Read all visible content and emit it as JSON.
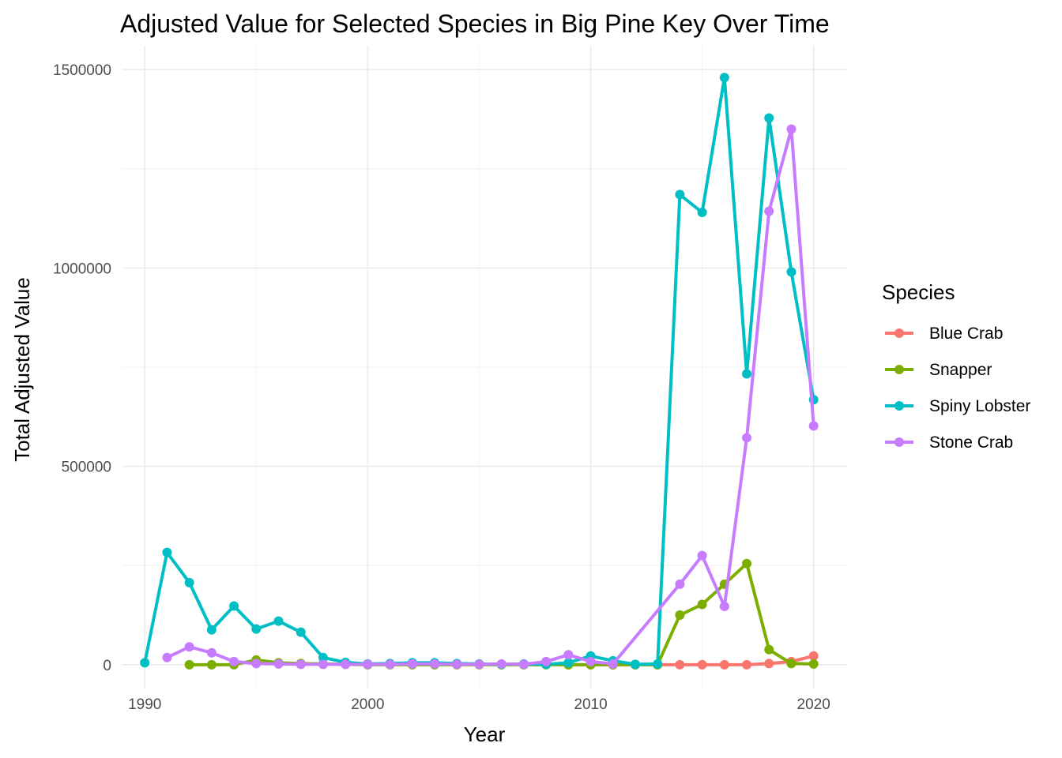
{
  "chart_data": {
    "type": "line",
    "title": "Adjusted Value for Selected Species in Big Pine Key Over Time",
    "xlabel": "Year",
    "ylabel": "Total Adjusted Value",
    "xlim": [
      1989,
      2021.5
    ],
    "ylim": [
      -60000,
      1560000
    ],
    "xticks": [
      1990,
      2000,
      2010,
      2020
    ],
    "yticks": [
      0,
      500000,
      1000000,
      1500000
    ],
    "grid": true,
    "legend": {
      "title": "Species",
      "position": "right"
    },
    "series": [
      {
        "name": "Blue Crab",
        "color": "#F8766D",
        "points": [
          [
            2009,
            0
          ],
          [
            2010,
            0
          ],
          [
            2011,
            0
          ],
          [
            2012,
            0
          ],
          [
            2013,
            0
          ],
          [
            2014,
            0
          ],
          [
            2015,
            0
          ],
          [
            2016,
            0
          ],
          [
            2017,
            0
          ],
          [
            2018,
            3000
          ],
          [
            2019,
            8000
          ],
          [
            2020,
            22000
          ]
        ]
      },
      {
        "name": "Snapper",
        "color": "#7CAE00",
        "points": [
          [
            1992,
            0
          ],
          [
            1993,
            0
          ],
          [
            1994,
            0
          ],
          [
            1995,
            12000
          ],
          [
            1996,
            5000
          ],
          [
            1997,
            3000
          ],
          [
            1998,
            2000
          ],
          [
            1999,
            1000
          ],
          [
            2000,
            0
          ],
          [
            2001,
            0
          ],
          [
            2002,
            0
          ],
          [
            2003,
            0
          ],
          [
            2004,
            0
          ],
          [
            2005,
            0
          ],
          [
            2006,
            0
          ],
          [
            2007,
            0
          ],
          [
            2008,
            0
          ],
          [
            2009,
            0
          ],
          [
            2010,
            0
          ],
          [
            2011,
            0
          ],
          [
            2012,
            0
          ],
          [
            2013,
            0
          ],
          [
            2014,
            125000
          ],
          [
            2015,
            152000
          ],
          [
            2016,
            203000
          ],
          [
            2017,
            255000
          ],
          [
            2018,
            38000
          ],
          [
            2019,
            3000
          ],
          [
            2020,
            2000
          ]
        ]
      },
      {
        "name": "Spiny Lobster",
        "color": "#00BFC4",
        "points": [
          [
            1990,
            5000
          ],
          [
            1991,
            283000
          ],
          [
            1992,
            207000
          ],
          [
            1993,
            88000
          ],
          [
            1994,
            148000
          ],
          [
            1995,
            90000
          ],
          [
            1996,
            110000
          ],
          [
            1997,
            82000
          ],
          [
            1998,
            18000
          ],
          [
            1999,
            6000
          ],
          [
            2000,
            2000
          ],
          [
            2001,
            3000
          ],
          [
            2002,
            5000
          ],
          [
            2003,
            5000
          ],
          [
            2004,
            3000
          ],
          [
            2005,
            2000
          ],
          [
            2006,
            1000
          ],
          [
            2007,
            2000
          ],
          [
            2008,
            1000
          ],
          [
            2009,
            5000
          ],
          [
            2010,
            22000
          ],
          [
            2011,
            10000
          ],
          [
            2012,
            1000
          ],
          [
            2013,
            2000
          ],
          [
            2014,
            1185000
          ],
          [
            2015,
            1140000
          ],
          [
            2016,
            1480000
          ],
          [
            2017,
            733000
          ],
          [
            2018,
            1378000
          ],
          [
            2019,
            990000
          ],
          [
            2020,
            668000
          ]
        ]
      },
      {
        "name": "Stone Crab",
        "color": "#C77CFF",
        "points": [
          [
            1991,
            18000
          ],
          [
            1992,
            45000
          ],
          [
            1993,
            30000
          ],
          [
            1994,
            8000
          ],
          [
            1995,
            3000
          ],
          [
            1996,
            2000
          ],
          [
            1997,
            1000
          ],
          [
            1998,
            1000
          ],
          [
            1999,
            1000
          ],
          [
            2000,
            1000
          ],
          [
            2001,
            1000
          ],
          [
            2002,
            2000
          ],
          [
            2003,
            2000
          ],
          [
            2004,
            1000
          ],
          [
            2005,
            1000
          ],
          [
            2006,
            2000
          ],
          [
            2007,
            1000
          ],
          [
            2008,
            8000
          ],
          [
            2009,
            25000
          ],
          [
            2010,
            8000
          ],
          [
            2011,
            2000
          ],
          [
            2014,
            203000
          ],
          [
            2015,
            275000
          ],
          [
            2016,
            147000
          ],
          [
            2017,
            572000
          ],
          [
            2018,
            1143000
          ],
          [
            2019,
            1350000
          ],
          [
            2020,
            602000
          ]
        ]
      }
    ]
  }
}
